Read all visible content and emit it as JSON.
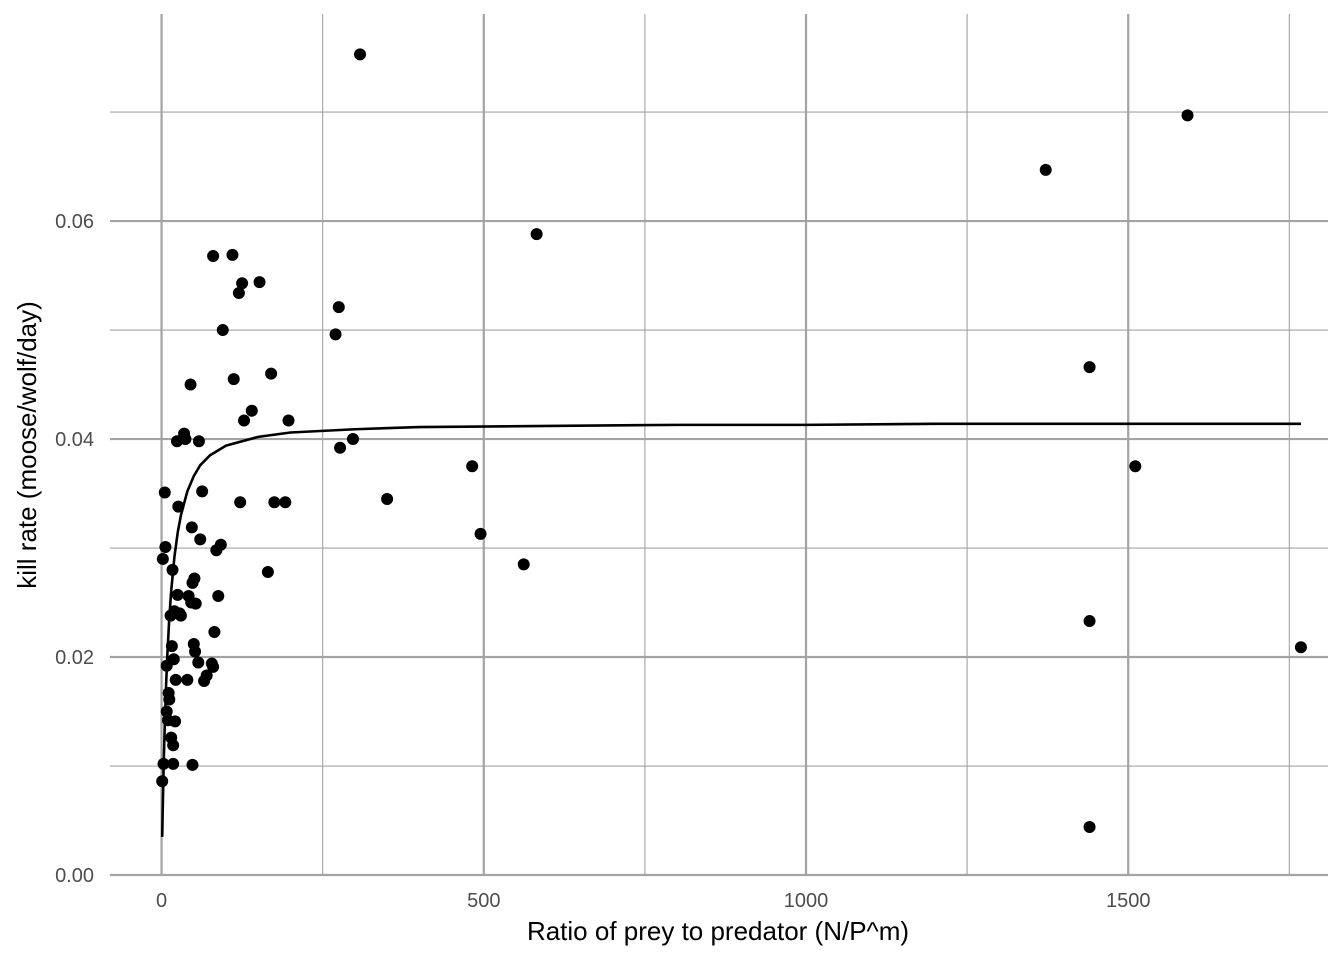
{
  "chart_data": {
    "type": "scatter",
    "xlabel": "Ratio of prey to predator (N/P^m)",
    "ylabel": "kill rate (moose/wolf/day)",
    "xlim": [
      -80,
      1810
    ],
    "ylim": [
      0.0,
      0.079
    ],
    "x_ticks": [
      0,
      500,
      1000,
      1500
    ],
    "x_tick_labels": [
      "0",
      "500",
      "1000",
      "1500"
    ],
    "x_minor_ticks": [
      250,
      750,
      1250,
      1750
    ],
    "y_ticks": [
      0.0,
      0.02,
      0.04,
      0.06
    ],
    "y_tick_labels": [
      "0.00",
      "0.02",
      "0.04",
      "0.06"
    ],
    "y_minor_ticks": [
      0.01,
      0.03,
      0.05,
      0.07
    ],
    "grid": true,
    "legend": "none",
    "colors": {
      "points": "#000000",
      "fit_line": "#000000",
      "grid": "#a3a3a3",
      "tick_label": "#4d4d4d",
      "background": "#ffffff"
    },
    "series": [
      {
        "kind": "points",
        "points": [
          [
            1,
            0.0086
          ],
          [
            2,
            0.029
          ],
          [
            3,
            0.0102
          ],
          [
            5,
            0.0351
          ],
          [
            6,
            0.0301
          ],
          [
            8,
            0.015
          ],
          [
            8,
            0.0192
          ],
          [
            10,
            0.0142
          ],
          [
            11,
            0.0167
          ],
          [
            12,
            0.0161
          ],
          [
            14,
            0.0238
          ],
          [
            15,
            0.0126
          ],
          [
            16,
            0.021
          ],
          [
            17,
            0.028
          ],
          [
            18,
            0.0102
          ],
          [
            18,
            0.0119
          ],
          [
            19,
            0.0198
          ],
          [
            20,
            0.0242
          ],
          [
            21,
            0.0141
          ],
          [
            22,
            0.0179
          ],
          [
            24,
            0.0398
          ],
          [
            25,
            0.0257
          ],
          [
            26,
            0.0338
          ],
          [
            28,
            0.024
          ],
          [
            30,
            0.0238
          ],
          [
            35,
            0.0405
          ],
          [
            37,
            0.04
          ],
          [
            40,
            0.0179
          ],
          [
            42,
            0.0256
          ],
          [
            45,
            0.045
          ],
          [
            46,
            0.025
          ],
          [
            47,
            0.0319
          ],
          [
            48,
            0.0268
          ],
          [
            48,
            0.0101
          ],
          [
            50,
            0.0212
          ],
          [
            51,
            0.0272
          ],
          [
            52,
            0.0205
          ],
          [
            53,
            0.0249
          ],
          [
            57,
            0.0195
          ],
          [
            58,
            0.0398
          ],
          [
            60,
            0.0308
          ],
          [
            63,
            0.0352
          ],
          [
            66,
            0.0178
          ],
          [
            70,
            0.0183
          ],
          [
            78,
            0.0194
          ],
          [
            80,
            0.0568
          ],
          [
            80,
            0.0191
          ],
          [
            82,
            0.0223
          ],
          [
            85,
            0.0298
          ],
          [
            88,
            0.0256
          ],
          [
            92,
            0.0303
          ],
          [
            95,
            0.05
          ],
          [
            110,
            0.0569
          ],
          [
            112,
            0.0455
          ],
          [
            120,
            0.0534
          ],
          [
            122,
            0.0342
          ],
          [
            125,
            0.0543
          ],
          [
            128,
            0.0417
          ],
          [
            140,
            0.0426
          ],
          [
            152,
            0.0544
          ],
          [
            165,
            0.0278
          ],
          [
            170,
            0.046
          ],
          [
            175,
            0.0342
          ],
          [
            192,
            0.0342
          ],
          [
            197,
            0.0417
          ],
          [
            270,
            0.0496
          ],
          [
            275,
            0.0521
          ],
          [
            277,
            0.0392
          ],
          [
            297,
            0.04
          ],
          [
            308,
            0.0753
          ],
          [
            350,
            0.0345
          ],
          [
            482,
            0.0375
          ],
          [
            495,
            0.0313
          ],
          [
            562,
            0.0285
          ],
          [
            582,
            0.0588
          ],
          [
            1372,
            0.0647
          ],
          [
            1440,
            0.0466
          ],
          [
            1440,
            0.0233
          ],
          [
            1440,
            0.0044
          ],
          [
            1511,
            0.0375
          ],
          [
            1592,
            0.0697
          ],
          [
            1768,
            0.0209
          ]
        ]
      },
      {
        "kind": "fit_line",
        "points": [
          [
            1,
            0.0035
          ],
          [
            2,
            0.0066
          ],
          [
            3,
            0.0093
          ],
          [
            4,
            0.0117
          ],
          [
            5,
            0.0138
          ],
          [
            7,
            0.0174
          ],
          [
            9,
            0.0202
          ],
          [
            12,
            0.0236
          ],
          [
            15,
            0.0261
          ],
          [
            20,
            0.0292
          ],
          [
            25,
            0.0314
          ],
          [
            30,
            0.033
          ],
          [
            40,
            0.0352
          ],
          [
            50,
            0.0366
          ],
          [
            60,
            0.0376
          ],
          [
            75,
            0.0385
          ],
          [
            100,
            0.0394
          ],
          [
            150,
            0.0402
          ],
          [
            200,
            0.0406
          ],
          [
            300,
            0.0409
          ],
          [
            400,
            0.0411
          ],
          [
            600,
            0.0412
          ],
          [
            800,
            0.0413
          ],
          [
            1000,
            0.0413
          ],
          [
            1200,
            0.0414
          ],
          [
            1400,
            0.0414
          ],
          [
            1600,
            0.0414
          ],
          [
            1768,
            0.0414
          ]
        ]
      }
    ]
  }
}
